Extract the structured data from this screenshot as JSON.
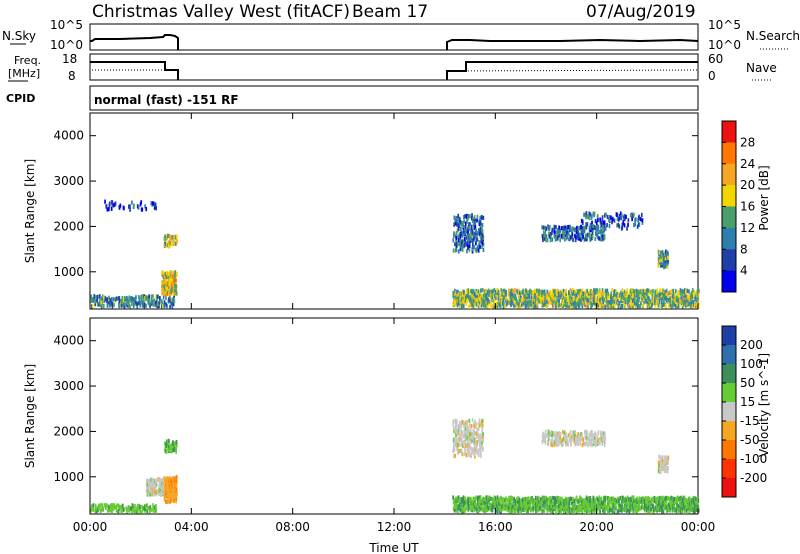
{
  "header": {
    "title": "Christmas Valley West (fitACF)",
    "beam": "Beam 17",
    "date": "07/Aug/2019"
  },
  "panels": {
    "nsky_label": "N.Sky",
    "nsky_ticks": [
      "10^5",
      "10^0"
    ],
    "nsearch_label": "N.Search",
    "nsearch_ticks": [
      "10^5",
      "10^0"
    ],
    "freq_label": "Freq.",
    "freq_unit": "[MHz]",
    "freq_ticks": [
      "18",
      "8"
    ],
    "nave_label": "Nave",
    "nave_ticks": [
      "60",
      "0"
    ],
    "cpid_label": "CPID",
    "cpid_text": "normal (fast) -151 RF"
  },
  "chart_data": [
    {
      "type": "heatmap",
      "name": "power",
      "ylabel": "Slant Range [km]",
      "xlabel": "",
      "xlim": [
        "00:00",
        "24:00"
      ],
      "ylim": [
        180,
        4500
      ],
      "yticks": [
        "1000",
        "2000",
        "3000",
        "4000"
      ],
      "colorbar": {
        "label": "Power [dB]",
        "ticks": [
          "28",
          "24",
          "20",
          "16",
          "12",
          "8",
          "4"
        ],
        "range": [
          0,
          30
        ],
        "colors": [
          "#ee1111",
          "#ff7700",
          "#f5a623",
          "#f2d600",
          "#4a9e6a",
          "#2f7fae",
          "#1f3fa8",
          "#0000ee"
        ]
      },
      "observation_windows": [
        {
          "start": "00:00",
          "end": "03:30"
        },
        {
          "start": "14:20",
          "end": "24:00"
        }
      ],
      "clusters": [
        {
          "t0": 0.0,
          "t1": 3.3,
          "r0": 180,
          "r1": 420,
          "value": 10,
          "density": 0.55
        },
        {
          "t0": 2.8,
          "t1": 3.4,
          "r0": 450,
          "r1": 950,
          "value": 18,
          "density": 0.8
        },
        {
          "t0": 2.9,
          "t1": 3.4,
          "r0": 1500,
          "r1": 1750,
          "value": 16,
          "density": 0.6
        },
        {
          "t0": 0.5,
          "t1": 2.6,
          "r0": 2300,
          "r1": 2500,
          "value": 6,
          "density": 0.2
        },
        {
          "t0": 14.3,
          "t1": 24.0,
          "r0": 180,
          "r1": 550,
          "value": 14,
          "density": 0.65
        },
        {
          "t0": 14.3,
          "t1": 15.5,
          "r0": 1400,
          "r1": 2200,
          "value": 8,
          "density": 0.4
        },
        {
          "t0": 17.8,
          "t1": 20.3,
          "r0": 1650,
          "r1": 1950,
          "value": 8,
          "density": 0.45
        },
        {
          "t0": 19.3,
          "t1": 21.8,
          "r0": 1900,
          "r1": 2250,
          "value": 7,
          "density": 0.25
        },
        {
          "t0": 22.4,
          "t1": 22.8,
          "r0": 1050,
          "r1": 1400,
          "value": 12,
          "density": 0.7
        }
      ]
    },
    {
      "type": "heatmap",
      "name": "velocity",
      "ylabel": "Slant Range [km]",
      "xlabel": "Time UT",
      "xlim": [
        "00:00",
        "24:00"
      ],
      "ylim": [
        180,
        4500
      ],
      "xticks": [
        "00:00",
        "04:00",
        "08:00",
        "12:00",
        "16:00",
        "20:00",
        "00:00"
      ],
      "yticks": [
        "1000",
        "2000",
        "3000",
        "4000"
      ],
      "colorbar": {
        "label": "Velocity [m s^-1]",
        "ticks": [
          "200",
          "100",
          "50",
          "15",
          "-15",
          "-50",
          "-100",
          "-200"
        ],
        "colors": [
          "#1f3fa8",
          "#2f6fae",
          "#3c8f5c",
          "#66cc33",
          "#c8c8c8",
          "#f5a623",
          "#ff7700",
          "#ff3300",
          "#ee1111"
        ]
      },
      "clusters": [
        {
          "t0": 0.0,
          "t1": 2.6,
          "r0": 180,
          "r1": 330,
          "value": 40,
          "density": 0.6
        },
        {
          "t0": 2.2,
          "t1": 3.3,
          "r0": 550,
          "r1": 900,
          "value": 0,
          "density": 0.75
        },
        {
          "t0": 2.9,
          "t1": 3.4,
          "r0": 400,
          "r1": 950,
          "value": -40,
          "density": 0.8
        },
        {
          "t0": 2.9,
          "t1": 3.4,
          "r0": 1500,
          "r1": 1750,
          "value": 50,
          "density": 0.6
        },
        {
          "t0": 14.3,
          "t1": 24.0,
          "r0": 180,
          "r1": 500,
          "value": 45,
          "density": 0.7
        },
        {
          "t0": 14.3,
          "t1": 15.5,
          "r0": 1400,
          "r1": 2200,
          "value": 0,
          "density": 0.4
        },
        {
          "t0": 17.8,
          "t1": 20.3,
          "r0": 1650,
          "r1": 1950,
          "value": 0,
          "density": 0.45
        },
        {
          "t0": 22.4,
          "t1": 22.8,
          "r0": 1050,
          "r1": 1400,
          "value": 0,
          "density": 0.7
        }
      ]
    }
  ]
}
